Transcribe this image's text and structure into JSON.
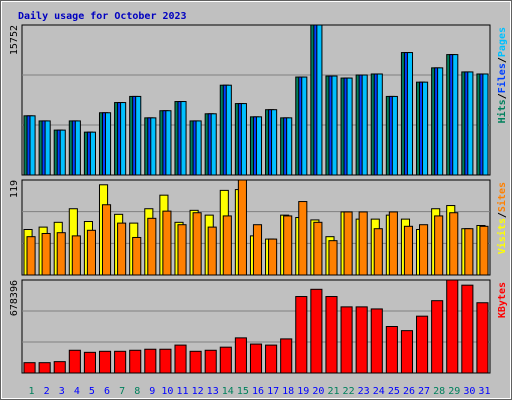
{
  "chart_data": [
    {
      "type": "bar",
      "title": "Daily usage for October 2023",
      "ylim": [
        0,
        15752
      ],
      "yticks": [
        15752
      ],
      "legend_separator": "/",
      "series": [
        {
          "name": "Hits",
          "color": "#00805c",
          "values": [
            6215,
            5679,
            4715,
            5679,
            4500,
            6537,
            7608,
            8251,
            6001,
            6751,
            7715,
            5679,
            6429,
            9430,
            7501,
            6108,
            6858,
            6001,
            10287,
            15752,
            10394,
            10180,
            10501,
            10608,
            8251,
            12859,
            9751,
            11251,
            12644,
            10823,
            10608
          ]
        },
        {
          "name": "Files",
          "color": "#0040ff",
          "values": [
            6215,
            5679,
            4715,
            5679,
            4500,
            6537,
            7608,
            8251,
            6001,
            6751,
            7715,
            5679,
            6429,
            9430,
            7501,
            6108,
            6858,
            6001,
            10287,
            15752,
            10394,
            10180,
            10501,
            10608,
            8251,
            12859,
            9751,
            11251,
            12644,
            10823,
            10608
          ]
        },
        {
          "name": "Pages",
          "color": "#00c0ff",
          "values": [
            6215,
            5679,
            4715,
            5679,
            4500,
            6537,
            7608,
            8251,
            6001,
            6751,
            7715,
            5679,
            6429,
            9430,
            7501,
            6108,
            6858,
            6001,
            10287,
            15752,
            10394,
            10180,
            10501,
            10608,
            8251,
            12859,
            9751,
            11251,
            12644,
            10823,
            10608
          ]
        }
      ]
    },
    {
      "type": "bar",
      "ylim": [
        0,
        119
      ],
      "yticks": [
        119
      ],
      "legend_separator": "/",
      "series": [
        {
          "name": "Visits",
          "color": "#ffff00",
          "values": [
            57,
            60,
            66,
            83,
            67,
            113,
            76,
            65,
            83,
            100,
            66,
            81,
            75,
            106,
            107,
            49,
            45,
            75,
            72,
            69,
            48,
            79,
            70,
            70,
            75,
            70,
            57,
            83,
            87,
            58,
            62
          ]
        },
        {
          "name": "Sites",
          "color": "#ff8000",
          "values": [
            48,
            52,
            53,
            49,
            56,
            88,
            65,
            47,
            71,
            80,
            63,
            78,
            60,
            74,
            119,
            63,
            45,
            74,
            92,
            66,
            43,
            79,
            79,
            58,
            79,
            61,
            63,
            74,
            78,
            58,
            61
          ]
        }
      ]
    },
    {
      "type": "bar",
      "ylim": [
        0,
        678396
      ],
      "yticks": [
        678396
      ],
      "categories": [
        "1",
        "2",
        "3",
        "4",
        "5",
        "6",
        "7",
        "8",
        "9",
        "10",
        "11",
        "12",
        "13",
        "14",
        "15",
        "16",
        "17",
        "18",
        "19",
        "20",
        "21",
        "22",
        "23",
        "24",
        "25",
        "26",
        "27",
        "28",
        "29",
        "30",
        "31"
      ],
      "category_colors": [
        "#00805c",
        "#0000ff",
        "#0000ff",
        "#0000ff",
        "#0000ff",
        "#0000ff",
        "#00805c",
        "#00805c",
        "#0000ff",
        "#0000ff",
        "#0000ff",
        "#0000ff",
        "#0000ff",
        "#00805c",
        "#00805c",
        "#0000ff",
        "#0000ff",
        "#0000ff",
        "#0000ff",
        "#0000ff",
        "#00805c",
        "#00805c",
        "#0000ff",
        "#0000ff",
        "#0000ff",
        "#0000ff",
        "#0000ff",
        "#00805c",
        "#00805c",
        "#0000ff",
        "#0000ff"
      ],
      "series": [
        {
          "name": "KBytes",
          "color": "#ff0000",
          "values": [
            75378,
            75378,
            82916,
            165832,
            150756,
            158294,
            158294,
            165832,
            173370,
            173370,
            203519,
            158294,
            165832,
            188444,
            256285,
            211057,
            203519,
            248745,
            557792,
            610556,
            557792,
            482415,
            482415,
            467340,
            339198,
            309047,
            414575,
            527641,
            678396,
            640707,
            512566
          ]
        }
      ]
    }
  ]
}
